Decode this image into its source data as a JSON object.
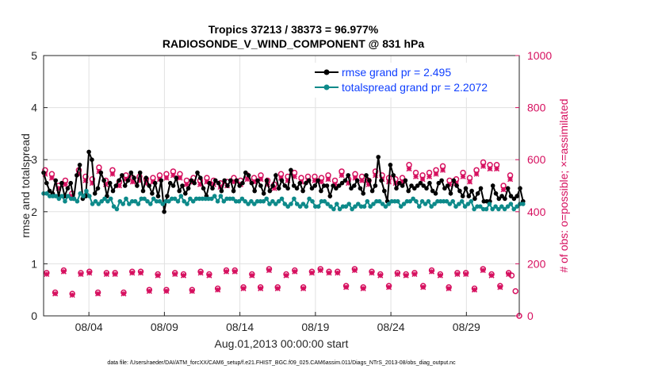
{
  "chart_data": {
    "type": "line",
    "title_line1": "Tropics 37213 / 38373 = 96.977%",
    "title_line2": "RADIOSONDE_V_WIND_COMPONENT @ 831 hPa",
    "xlabel": "Aug.01,2013 00:00:00 start",
    "ylabel_left": "rmse and totalspread",
    "ylabel_right": "# of obs: o=possible; ×=assimilated",
    "xlim": [
      1,
      32.5
    ],
    "ylim_left": [
      0,
      5
    ],
    "ylim_right": [
      0,
      1000
    ],
    "x_ticks": [
      4,
      9,
      14,
      19,
      24,
      29
    ],
    "x_tick_labels": [
      "08/04",
      "08/09",
      "08/14",
      "08/19",
      "08/24",
      "08/29"
    ],
    "y_left_ticks": [
      0,
      1,
      2,
      3,
      4,
      5
    ],
    "y_left_tick_labels": [
      "0",
      "1",
      "2",
      "3",
      "4",
      "5"
    ],
    "y_right_ticks": [
      0,
      200,
      400,
      600,
      800,
      1000
    ],
    "y_right_tick_labels": [
      "0",
      "200",
      "400",
      "600",
      "800",
      "1000"
    ],
    "grid": true,
    "legend_position": "top-right",
    "series": [
      {
        "name": "rmse grand pr = 2.495",
        "color": "#000000",
        "marker": "circle",
        "values": [
          2.75,
          2.55,
          2.4,
          2.35,
          2.6,
          2.3,
          2.55,
          2.3,
          2.45,
          2.55,
          2.25,
          2.7,
          2.9,
          2.25,
          2.3,
          3.15,
          3.0,
          2.35,
          2.45,
          2.75,
          2.6,
          2.3,
          2.55,
          2.4,
          2.5,
          2.6,
          2.7,
          2.5,
          2.6,
          2.75,
          2.65,
          2.5,
          2.75,
          2.4,
          2.65,
          2.5,
          2.35,
          2.55,
          2.3,
          2.6,
          2.0,
          2.3,
          2.55,
          2.5,
          2.65,
          2.4,
          2.5,
          2.35,
          2.45,
          2.6,
          2.55,
          2.75,
          2.65,
          2.45,
          2.3,
          2.55,
          2.45,
          2.6,
          2.55,
          2.4,
          2.6,
          2.5,
          2.6,
          2.4,
          2.6,
          2.5,
          2.55,
          2.75,
          2.7,
          2.55,
          2.4,
          2.6,
          2.5,
          2.35,
          2.6,
          2.4,
          2.5,
          2.7,
          2.45,
          2.6,
          2.5,
          2.45,
          2.8,
          2.5,
          2.45,
          2.55,
          2.4,
          2.55,
          2.6,
          2.45,
          2.5,
          2.6,
          2.4,
          2.5,
          2.5,
          2.3,
          2.5,
          2.45,
          2.5,
          2.55,
          2.6,
          2.7,
          2.45,
          2.5,
          2.6,
          2.45,
          2.35,
          2.7,
          2.6,
          2.4,
          2.5,
          3.05,
          2.6,
          2.4,
          2.2,
          2.9,
          2.7,
          2.45,
          2.55,
          2.5,
          2.6,
          2.4,
          2.5,
          2.45,
          2.5,
          2.55,
          2.5,
          2.45,
          2.55,
          2.4,
          2.35,
          2.55,
          2.6,
          2.45,
          2.5,
          2.35,
          2.6,
          2.5,
          2.4,
          2.3,
          2.45,
          2.3,
          2.4,
          2.25,
          2.35,
          2.45,
          2.2,
          2.2,
          2.2,
          2.5,
          2.35,
          2.25,
          2.3,
          2.25,
          2.45,
          2.3,
          2.25,
          2.3,
          2.45,
          2.2
        ]
      },
      {
        "name": "totalspread grand pr = 2.2072",
        "color": "#0d8a8a",
        "marker": "circle",
        "values": [
          2.35,
          2.35,
          2.3,
          2.3,
          2.3,
          2.25,
          2.3,
          2.2,
          2.3,
          2.25,
          2.25,
          2.2,
          2.35,
          2.3,
          2.4,
          2.3,
          2.15,
          2.2,
          2.15,
          2.2,
          2.25,
          2.2,
          2.25,
          2.1,
          2.05,
          2.2,
          2.15,
          2.25,
          2.15,
          2.2,
          2.2,
          2.15,
          2.25,
          2.25,
          2.2,
          2.15,
          2.25,
          2.2,
          2.2,
          2.15,
          2.2,
          2.2,
          2.25,
          2.25,
          2.2,
          2.3,
          2.2,
          2.15,
          2.25,
          2.2,
          2.25,
          2.25,
          2.25,
          2.25,
          2.25,
          2.25,
          2.3,
          2.2,
          2.3,
          2.2,
          2.25,
          2.25,
          2.25,
          2.2,
          2.2,
          2.25,
          2.2,
          2.15,
          2.2,
          2.15,
          2.2,
          2.2,
          2.2,
          2.25,
          2.15,
          2.2,
          2.15,
          2.2,
          2.25,
          2.15,
          2.1,
          2.15,
          2.25,
          2.15,
          2.1,
          2.15,
          2.1,
          2.25,
          2.2,
          2.1,
          2.1,
          2.2,
          2.2,
          2.15,
          2.1,
          2.05,
          2.15,
          2.05,
          2.1,
          2.1,
          2.15,
          2.05,
          2.1,
          2.15,
          2.1,
          2.1,
          2.2,
          2.1,
          2.15,
          2.2,
          2.2,
          2.15,
          2.1,
          2.15,
          2.2,
          2.2,
          2.2,
          2.1,
          2.15,
          2.2,
          2.2,
          2.25,
          2.2,
          2.1,
          2.2,
          2.15,
          2.2,
          2.1,
          2.15,
          2.2,
          2.2,
          2.2,
          2.2,
          2.15,
          2.2,
          2.1,
          2.15,
          2.2,
          2.1,
          2.15,
          2.2,
          2.05,
          2.1,
          2.1,
          2.05,
          2.05,
          2.15,
          2.05,
          2.1,
          2.05,
          2.1,
          2.05,
          2.1,
          2.15,
          2.05,
          2.1,
          2.15,
          2.15
        ]
      }
    ],
    "obs_count": {
      "color": "#d6105f",
      "high_possible": [
        560,
        545,
        500,
        520,
        470,
        560,
        535,
        525,
        570,
        520,
        560,
        515,
        540,
        530,
        535,
        525,
        530,
        540,
        545,
        555,
        545,
        520,
        530,
        520,
        530,
        520,
        510,
        515,
        530,
        520,
        540,
        530,
        540,
        520,
        505,
        545,
        535,
        550,
        530,
        535,
        535,
        530,
        540,
        520,
        555,
        525,
        545,
        535,
        520,
        555,
        540,
        530,
        525,
        530,
        580,
        550,
        540,
        550,
        560,
        575,
        520,
        525,
        550,
        530,
        560,
        590,
        580,
        580,
        500,
        540
      ],
      "high_assimilated": [
        545,
        530,
        490,
        505,
        460,
        545,
        520,
        510,
        555,
        505,
        545,
        500,
        525,
        515,
        520,
        510,
        515,
        525,
        530,
        540,
        530,
        505,
        515,
        505,
        515,
        505,
        495,
        500,
        515,
        505,
        525,
        515,
        525,
        505,
        490,
        530,
        520,
        535,
        515,
        520,
        520,
        515,
        525,
        505,
        540,
        510,
        530,
        520,
        505,
        540,
        525,
        515,
        510,
        515,
        565,
        535,
        525,
        535,
        545,
        560,
        505,
        510,
        535,
        515,
        545,
        575,
        565,
        565,
        485,
        525
      ],
      "low_possible": [
        165,
        90,
        175,
        85,
        165,
        170,
        90,
        165,
        165,
        90,
        170,
        170,
        100,
        160,
        100,
        165,
        160,
        100,
        170,
        160,
        105,
        175,
        175,
        110,
        160,
        110,
        180,
        110,
        160,
        175,
        110,
        170,
        180,
        170,
        170,
        115,
        180,
        110,
        170,
        160,
        115,
        165,
        160,
        165,
        115,
        175,
        160,
        110,
        165,
        165,
        105,
        180,
        160,
        115,
        165
      ],
      "low_assimilated": [
        160,
        85,
        170,
        80,
        160,
        165,
        85,
        160,
        160,
        85,
        165,
        165,
        95,
        155,
        95,
        160,
        155,
        95,
        165,
        155,
        100,
        170,
        170,
        105,
        155,
        105,
        175,
        105,
        155,
        170,
        105,
        165,
        175,
        165,
        165,
        110,
        175,
        105,
        165,
        155,
        110,
        160,
        155,
        160,
        110,
        170,
        155,
        105,
        160,
        160,
        100,
        175,
        155,
        110,
        160
      ],
      "last_points": [
        155,
        95,
        0
      ]
    }
  },
  "footnote": "data file: /Users/raeder/DAI/ATM_forcXX/CAM6_setup/f.e21.FHIST_BGC.f09_025.CAM6assim.011/Diags_NTrS_2013-08/obs_diag_output.nc"
}
